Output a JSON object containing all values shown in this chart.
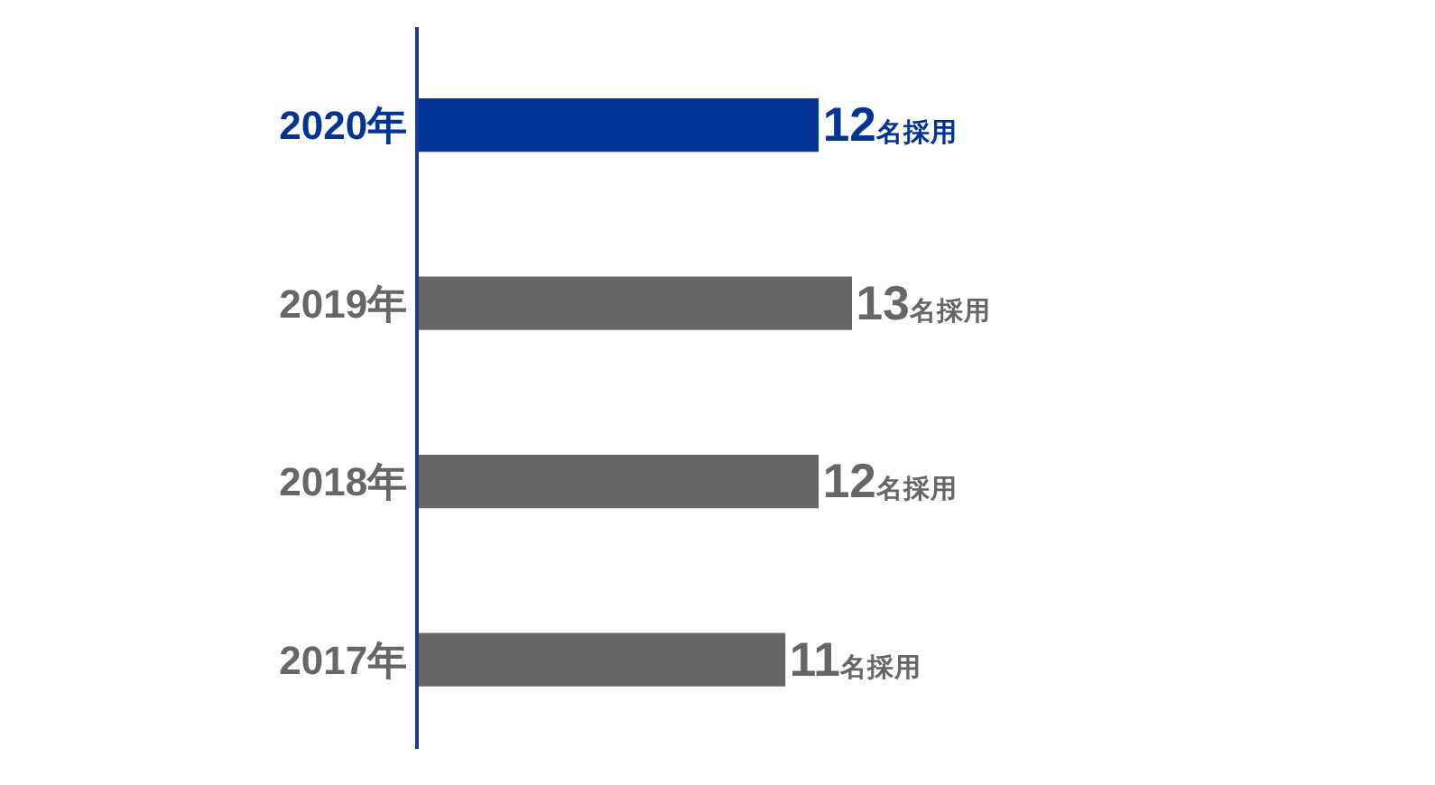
{
  "chart_data": {
    "type": "bar",
    "orientation": "horizontal",
    "categories": [
      "2020年",
      "2019年",
      "2018年",
      "2017年"
    ],
    "values": [
      12,
      13,
      12,
      11
    ],
    "colors": [
      "#023593",
      "#666666",
      "#666666",
      "#666666"
    ],
    "value_labels": [
      "12名採用",
      "13名採用",
      "12名採用",
      "11名採用"
    ],
    "tick_labels": "y",
    "legend": false
  }
}
